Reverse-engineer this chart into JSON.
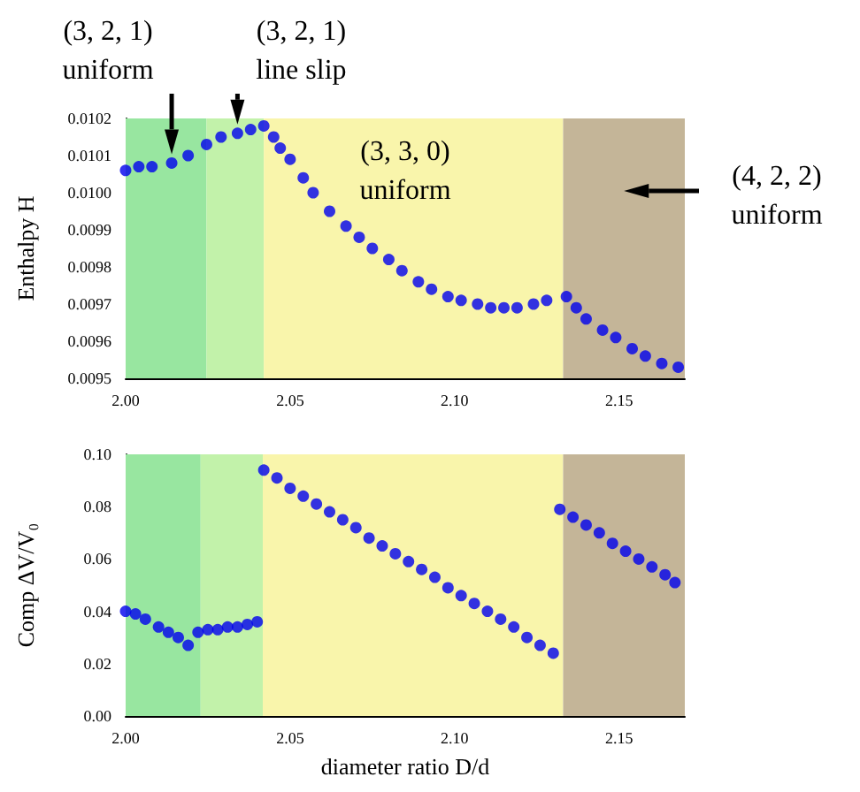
{
  "chart_data": [
    {
      "type": "scatter",
      "ylabel": "Enthalpy H",
      "marker": "circle",
      "xlim": [
        2.0,
        2.17
      ],
      "xticks": [
        {
          "value": 2.0,
          "label": "2.00"
        },
        {
          "value": 2.05,
          "label": "2.05"
        },
        {
          "value": 2.1,
          "label": "2.10"
        },
        {
          "value": 2.15,
          "label": "2.15"
        }
      ],
      "ylim": [
        0.0095,
        0.0102
      ],
      "yticks": [
        0.0095,
        0.0096,
        0.0097,
        0.0098,
        0.0099,
        {
          "value": 0.01,
          "label": "0.0100"
        },
        0.0101,
        0.0102
      ],
      "x": [
        2.0,
        2.004,
        2.008,
        2.014,
        2.019,
        2.0246,
        2.029,
        2.034,
        2.038,
        2.042,
        2.045,
        2.047,
        2.05,
        2.054,
        2.057,
        2.062,
        2.067,
        2.071,
        2.075,
        2.08,
        2.084,
        2.089,
        2.093,
        2.098,
        2.102,
        2.107,
        2.111,
        2.115,
        2.119,
        2.124,
        2.128,
        2.134,
        2.137,
        2.14,
        2.145,
        2.149,
        2.154,
        2.158,
        2.163,
        2.168
      ],
      "series": [
        {
          "color": "#0000ee",
          "values": [
            0.01006,
            0.01007,
            0.01007,
            0.01008,
            0.0101,
            0.01013,
            0.01015,
            0.01016,
            0.01017,
            0.01018,
            0.01015,
            0.01012,
            0.01009,
            0.01004,
            0.01,
            0.00995,
            0.00991,
            0.00988,
            0.00985,
            0.00982,
            0.00979,
            0.00976,
            0.00974,
            0.00972,
            0.00971,
            0.0097,
            0.00969,
            0.00969,
            0.00969,
            0.0097,
            0.00971,
            0.00972,
            0.00969,
            0.00966,
            0.00963,
            0.00961,
            0.00958,
            0.00956,
            0.00954,
            0.00953
          ]
        }
      ],
      "bands": [
        {
          "axis": "x",
          "from": 2.0,
          "to": 2.0246,
          "color": "#98e6a0"
        },
        {
          "axis": "x",
          "from": 2.0246,
          "to": 2.042,
          "color": "#c2f2aa"
        },
        {
          "axis": "x",
          "from": 2.042,
          "to": 2.133,
          "color": "#f9f5ab"
        },
        {
          "axis": "x",
          "from": 2.133,
          "to": 2.17,
          "color": "#c4b598"
        }
      ],
      "annotations": [
        {
          "text": "(3, 2, 1)\nuniform",
          "x": 2.014,
          "y": 0.01008
        },
        {
          "text": "(3, 2, 1)\nline slip",
          "x": 2.034,
          "y": 0.01016
        },
        "(3, 3, 0)\nuniform",
        "(4, 2, 2)\nuniform"
      ]
    },
    {
      "type": "scatter",
      "xlabel": "diameter ratio D/d",
      "ylabel": "Comp ΔV/V₀",
      "marker": "circle",
      "xlim": [
        2.0,
        2.17
      ],
      "xticks": [
        {
          "value": 2.0,
          "label": "2.00"
        },
        {
          "value": 2.05,
          "label": "2.05"
        },
        {
          "value": 2.1,
          "label": "2.10"
        },
        {
          "value": 2.15,
          "label": "2.15"
        }
      ],
      "ylim": [
        0,
        0.1
      ],
      "yticks": [
        {
          "value": 0,
          "label": "0.00"
        },
        {
          "value": 0.02,
          "label": "0.02"
        },
        {
          "value": 0.04,
          "label": "0.04"
        },
        {
          "value": 0.06,
          "label": "0.06"
        },
        {
          "value": 0.08,
          "label": "0.08"
        },
        {
          "value": 0.1,
          "label": "0.10"
        }
      ],
      "x": [
        2.0,
        2.003,
        2.006,
        2.01,
        2.013,
        2.016,
        2.019,
        2.022,
        2.025,
        2.028,
        2.031,
        2.034,
        2.037,
        2.04,
        2.042,
        2.046,
        2.05,
        2.054,
        2.058,
        2.062,
        2.066,
        2.07,
        2.074,
        2.078,
        2.082,
        2.086,
        2.09,
        2.094,
        2.098,
        2.102,
        2.106,
        2.11,
        2.114,
        2.118,
        2.122,
        2.126,
        2.13,
        2.132,
        2.136,
        2.14,
        2.144,
        2.148,
        2.152,
        2.156,
        2.16,
        2.164,
        2.167
      ],
      "series": [
        {
          "color": "#0000ee",
          "values": [
            0.04,
            0.039,
            0.037,
            0.034,
            0.032,
            0.03,
            0.027,
            0.032,
            0.033,
            0.033,
            0.034,
            0.034,
            0.035,
            0.036,
            0.094,
            0.091,
            0.087,
            0.084,
            0.081,
            0.078,
            0.075,
            0.072,
            0.068,
            0.065,
            0.062,
            0.059,
            0.056,
            0.053,
            0.049,
            0.046,
            0.043,
            0.04,
            0.037,
            0.034,
            0.03,
            0.027,
            0.024,
            0.079,
            0.076,
            0.073,
            0.07,
            0.066,
            0.063,
            0.06,
            0.057,
            0.054,
            0.051
          ]
        }
      ],
      "bands": [
        {
          "axis": "x",
          "from": 2.0,
          "to": 2.0228,
          "color": "#98e6a0"
        },
        {
          "axis": "x",
          "from": 2.0228,
          "to": 2.0417,
          "color": "#c2f2aa"
        },
        {
          "axis": "x",
          "from": 2.0417,
          "to": 2.133,
          "color": "#f9f5ab"
        },
        {
          "axis": "x",
          "from": 2.133,
          "to": 2.17,
          "color": "#c4b598"
        }
      ]
    }
  ]
}
